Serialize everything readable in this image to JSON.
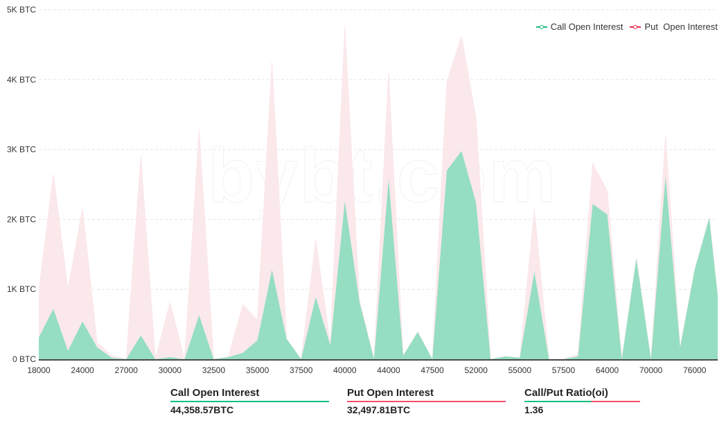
{
  "watermark": "bybt.com",
  "legend": {
    "call_label": "Call Open Interest",
    "put_label": "Put  Open Interest"
  },
  "colors": {
    "call_fill": "#95dec1",
    "put_fill": "#fbe8eb",
    "call_line": "#1fb97c",
    "put_line": "#e8294a",
    "stat_green": "#10c07d",
    "stat_red": "#f4506c"
  },
  "stats": [
    {
      "title": "Call Open Interest",
      "value": "44,358.57BTC"
    },
    {
      "title": "Put Open Interest",
      "value": "32,497.81BTC"
    },
    {
      "title": "Call/Put Ratio(oi)",
      "value": "1.36"
    }
  ],
  "chart_data": {
    "type": "area",
    "title": "",
    "xlabel": "",
    "ylabel": "",
    "ylim": [
      0,
      5000
    ],
    "y_unit": "BTC",
    "y_ticks": [
      "0 BTC",
      "1K BTC",
      "2K BTC",
      "3K BTC",
      "4K BTC",
      "5K BTC"
    ],
    "y_tick_values": [
      0,
      1000,
      2000,
      3000,
      4000,
      5000
    ],
    "x_tick_labels": [
      "18000",
      "24000",
      "27000",
      "30000",
      "32500",
      "35000",
      "37500",
      "40000",
      "44000",
      "47500",
      "52000",
      "55000",
      "57500",
      "64000",
      "70000",
      "76000"
    ],
    "x_tick_every": 3,
    "grid": true,
    "legend_position": "top-right",
    "point_count": 48,
    "series": [
      {
        "name": "Put  Open Interest",
        "values": [
          970,
          2650,
          1000,
          2160,
          240,
          50,
          0,
          2910,
          0,
          810,
          0,
          3290,
          0,
          30,
          780,
          560,
          4260,
          290,
          0,
          1710,
          220,
          4760,
          840,
          0,
          4100,
          50,
          390,
          0,
          3970,
          4620,
          3450,
          0,
          40,
          20,
          2140,
          0,
          0,
          70,
          2800,
          2410,
          0,
          1440,
          0,
          3200,
          170,
          1280,
          2020,
          100
        ]
      },
      {
        "name": "Call Open Interest",
        "values": [
          310,
          720,
          120,
          540,
          170,
          20,
          0,
          340,
          0,
          30,
          0,
          630,
          0,
          30,
          90,
          270,
          1280,
          290,
          0,
          890,
          200,
          2260,
          820,
          0,
          2580,
          50,
          390,
          0,
          2700,
          2980,
          2240,
          0,
          40,
          20,
          1250,
          0,
          0,
          40,
          2220,
          2070,
          0,
          1440,
          0,
          2620,
          170,
          1280,
          2020,
          100
        ]
      }
    ]
  }
}
